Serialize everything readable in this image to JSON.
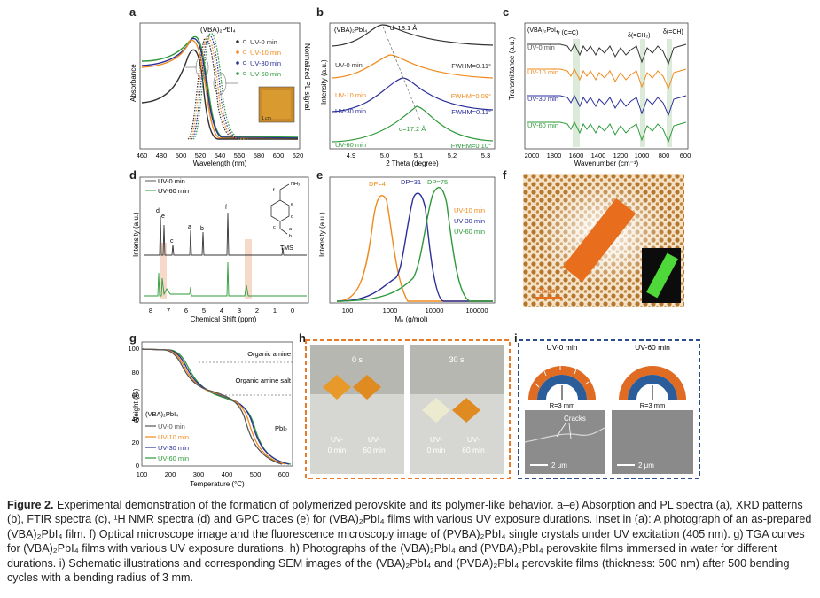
{
  "figure": {
    "panel_labels": [
      "a",
      "b",
      "c",
      "d",
      "e",
      "f",
      "g",
      "h",
      "i"
    ],
    "colors": {
      "uv0": "#333333",
      "uv10": "#f08a1c",
      "uv30": "#2b2f9a",
      "uv60": "#2e9a3a"
    },
    "a": {
      "title": "(VBA)₂PbI₄",
      "ylabel": "Absorbance",
      "ylabel2": "Normalized PL signal",
      "xlabel": "Wavelength (nm)",
      "xticks": [
        "460",
        "480",
        "500",
        "520",
        "540",
        "560",
        "580",
        "600",
        "620"
      ],
      "legend": [
        "UV-0 min",
        "UV-10 min",
        "UV-30 min",
        "UV-60 min"
      ],
      "inset_label": "1 cm"
    },
    "b": {
      "title": "(VBA)₂PbI₄",
      "d_top": "d=18.1 Å",
      "d_bottom": "d=17.2 Å",
      "ylabel": "Intensity (a.u.)",
      "xlabel": "2 Theta (degree)",
      "xticks": [
        "4.9",
        "5.0",
        "5.1",
        "5.2",
        "5.3"
      ],
      "curves": [
        "UV-0 min",
        "UV-10 min",
        "UV-30 min",
        "UV-60 min"
      ],
      "fwhm": [
        "FWHM=0.11°",
        "FWHM=0.09°",
        "FWHM=0.11°",
        "FWHM=0.10°"
      ]
    },
    "c": {
      "title": "(VBA)₂PbI₄",
      "ylabel": "Transmittance (a.u.)",
      "xlabel": "Wavenumber (cm⁻¹)",
      "xticks": [
        "2000",
        "1800",
        "1600",
        "1400",
        "1200",
        "1000",
        "800",
        "600"
      ],
      "annotations": [
        "ν (C=C)",
        "δ(=CH₂)",
        "δ(=CH)"
      ],
      "curves": [
        "UV-0 min",
        "UV-10 min",
        "UV-30 min",
        "UV-60 min"
      ]
    },
    "d": {
      "legend": [
        "UV-0 min",
        "UV-60 min"
      ],
      "ylabel": "Intensity (a.u.)",
      "xlabel": "Chemical Shift (ppm)",
      "xticks": [
        "8",
        "7",
        "6",
        "5",
        "4",
        "3",
        "2",
        "1",
        "0"
      ],
      "peaks": [
        "d",
        "e",
        "c",
        "a",
        "b",
        "f"
      ],
      "tms": "TMS",
      "structure": [
        "NH₃⁺",
        "f",
        "e",
        "d",
        "c",
        "a",
        "b"
      ]
    },
    "e": {
      "ylabel": "Intensity (a.u.)",
      "xlabel": "Mₙ (g/mol)",
      "xticks": [
        "100",
        "1000",
        "10000",
        "100000"
      ],
      "dp": [
        "DP=4",
        "DP=31",
        "DP=75"
      ],
      "legend": [
        "UV-10 min",
        "UV-30 min",
        "UV-60 min"
      ]
    },
    "f": {
      "scale": "20 μm"
    },
    "g": {
      "ylabel": "Weight (%)",
      "xlabel": "Temperature (°C)",
      "yticks": [
        "100",
        "80",
        "60",
        "40",
        "20",
        "0"
      ],
      "xticks": [
        "100",
        "200",
        "300",
        "400",
        "500",
        "600"
      ],
      "title": "(VBA)₂PbI₄",
      "legend": [
        "UV-0 min",
        "UV-10 min",
        "UV-30 min",
        "UV-60 min"
      ],
      "annotations": [
        "Organic amine",
        "Organic amine salt",
        "PbI₂"
      ]
    },
    "h": {
      "times": [
        "0 s",
        "30 s"
      ],
      "labels": [
        "UV-\n0 min",
        "UV-\n60 min",
        "UV-\n0 min",
        "UV-\n60 min"
      ]
    },
    "i": {
      "titles": [
        "UV-0 min",
        "UV-60 min"
      ],
      "radius": [
        "R=3 mm",
        "R=3 mm"
      ],
      "cracks": "Cracks",
      "scales": [
        "2 μm",
        "2 μm"
      ]
    }
  },
  "caption": {
    "lead": "Figure 2.",
    "text": " Experimental demonstration of the formation of polymerized perovskite and its polymer-like behavior. a–e) Absorption and PL spectra (a), XRD patterns (b), FTIR spectra (c), ¹H NMR spectra (d) and GPC traces (e) for (VBA)₂PbI₄ films with various UV exposure durations. Inset in (a): A photograph of an as-prepared (VBA)₂PbI₄ film. f) Optical microscope image and the fluorescence microscopy image of (PVBA)₂PbI₄ single crystals under UV excitation (405 nm). g) TGA curves for (VBA)₂PbI₄ films with various UV exposure durations. h) Photographs of the (VBA)₂PbI₄ and (PVBA)₂PbI₄ perovskite films immersed in water for different durations. i) Schematic illustrations and corresponding SEM images of the (VBA)₂PbI₄ and (PVBA)₂PbI₄ perovskite films (thickness: 500 nm) after 500 bending cycles with a bending radius of 3 mm."
  }
}
